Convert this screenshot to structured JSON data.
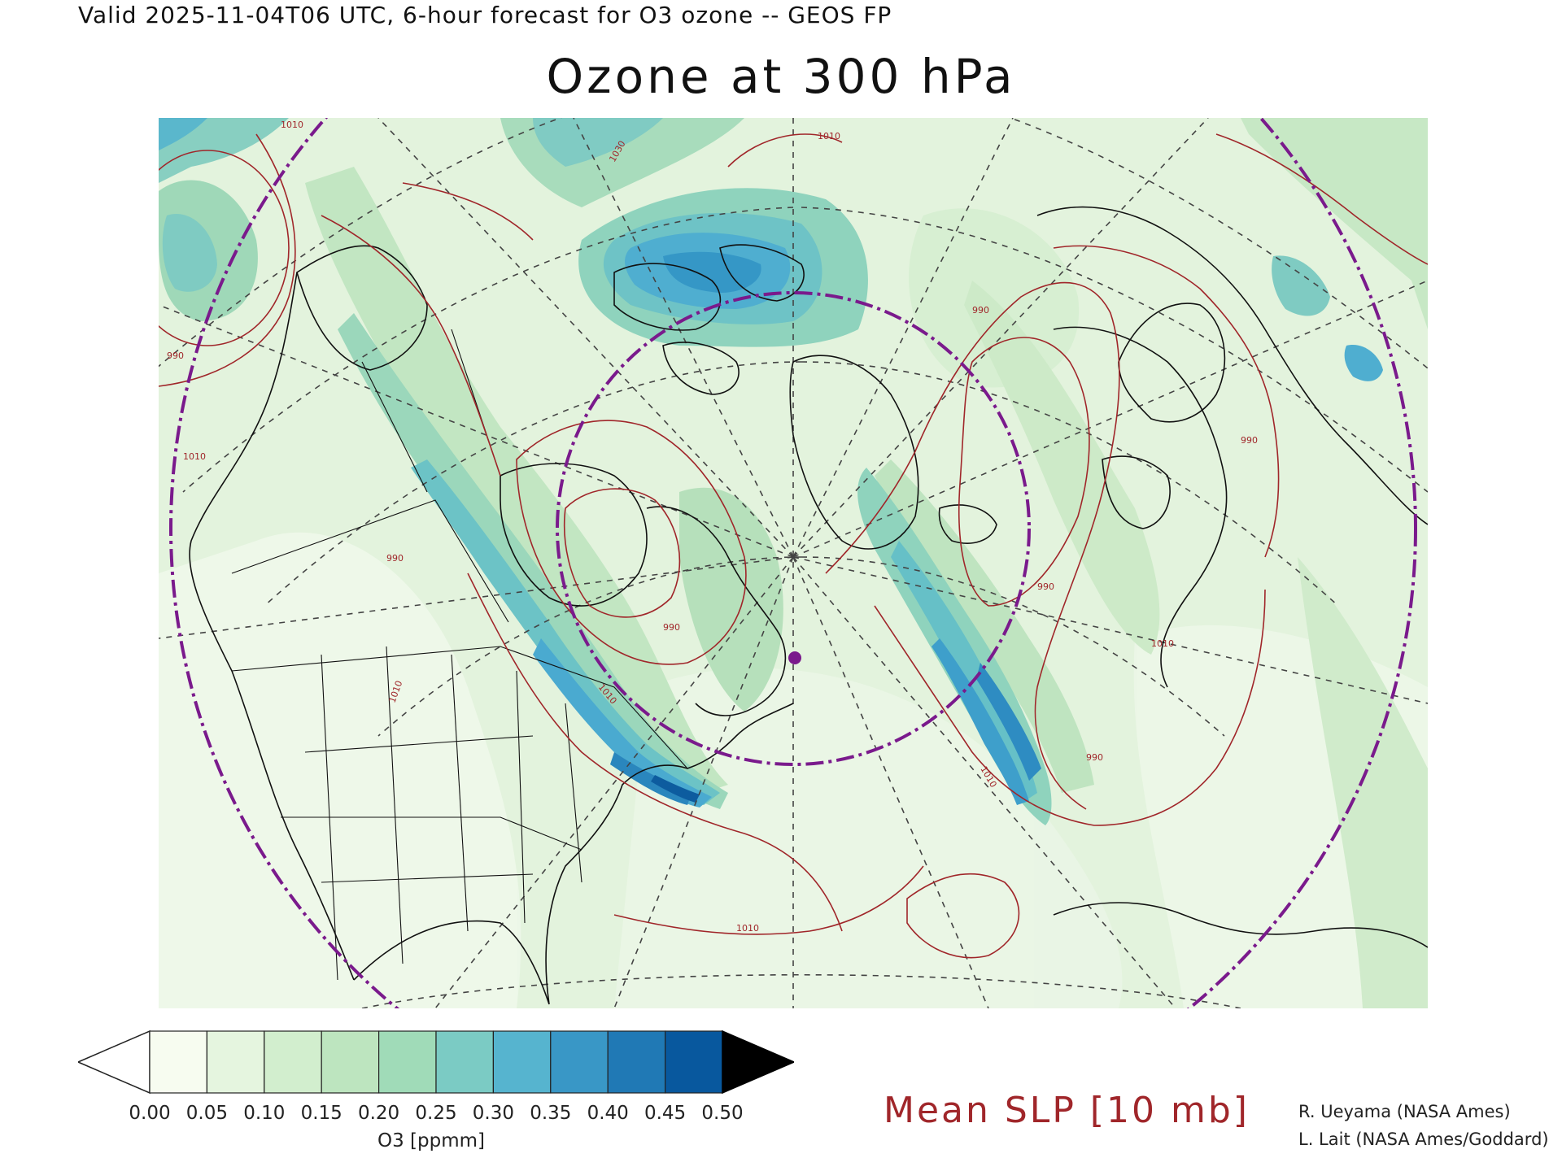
{
  "header": {
    "valid_line": "Valid 2025-11-04T06 UTC, 6-hour forecast for O3 ozone -- GEOS FP",
    "title": "Ozone at 300 hPa"
  },
  "map": {
    "field": "O3 ozone at 300 hPa",
    "overlay": "Mean SLP contours",
    "isobar_labels": [
      "1010",
      "1010",
      "1030",
      "990",
      "1010",
      "990",
      "1010",
      "990",
      "1010",
      "990",
      "990",
      "1010",
      "990",
      "1010",
      "1010",
      "990",
      "1010"
    ],
    "marker": "site-dot"
  },
  "colorbar": {
    "colors": [
      "#f7fcf0",
      "#e5f5df",
      "#d2eece",
      "#bde5bf",
      "#a0dbb8",
      "#7bcbc4",
      "#56b4cf",
      "#3997c6",
      "#2079b5",
      "#08589e"
    ],
    "under_color": "#ffffff",
    "over_color": "#000000",
    "ticks": [
      "0.00",
      "0.05",
      "0.10",
      "0.15",
      "0.20",
      "0.25",
      "0.30",
      "0.35",
      "0.40",
      "0.45",
      "0.50"
    ],
    "units": "O3 [ppmm]"
  },
  "legend": {
    "slp_label": "Mean SLP [10 mb]",
    "slp_color": "#a0262a"
  },
  "credits": {
    "line1": "R. Ueyama (NASA Ames)",
    "line2": "L. Lait (NASA Ames/Goddard)"
  }
}
